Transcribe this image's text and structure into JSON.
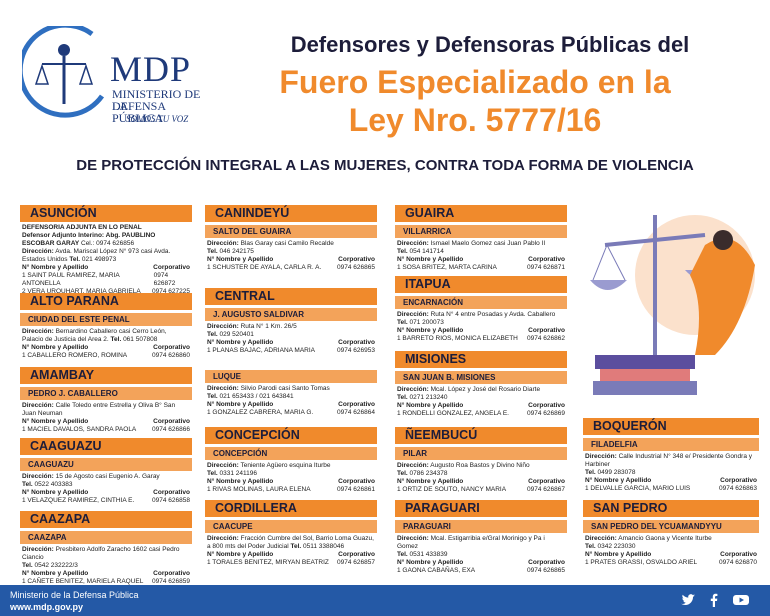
{
  "logo": {
    "abbr": "MDP",
    "line1": "MINISTERIO DE LA",
    "line2": "DEFENSA PÚBLICA",
    "line3": "SOMOS TU VOZ"
  },
  "title": {
    "line1": "Defensores y Defensoras Públicas del",
    "line2": "Fuero Especializado en la",
    "line3": "Ley Nro. 5777/16"
  },
  "subtitle": "DE PROTECCIÓN INTEGRAL A LAS MUJERES,  CONTRA TODA FORMA DE VIOLENCIA",
  "labels": {
    "direccion": "Dirección:",
    "tel": "Tel.",
    "nombre": "N° Nombre y Apellido",
    "corporativo": "Corporativo"
  },
  "cards": {
    "asuncion": {
      "title": "ASUNCIÓN",
      "adj": "DEFENSORIA ADJUNTA EN LO PENAL",
      "adj2": "Defensor Adjunto Interino: Abg. PAUBLINO",
      "adj3": "ESCOBAR GARAY",
      "cel": "Cel.: 0974 626856",
      "dir": "Avda. Mariscal López N° 973 casi Avda.",
      "dir2": "Estados Unidos",
      "tel": "021 498973",
      "p1": "1  SAINT PAUL RAMIREZ, MARIA ANTONELLA",
      "c1": "0974 626872",
      "p2": "2  VERA URQUHART, MARIA GABRIELA",
      "c2": "0974 627225"
    },
    "altoparana": {
      "title": "ALTO PARANA",
      "sub": "CIUDAD DEL ESTE PENAL",
      "dir": "Bernardino Caballero casi Cerro León,",
      "dir2": "Palacio de Justicia del  Area 2.",
      "tel": "061 507808",
      "p1": "1  CABALLERO ROMERO, ROMINA",
      "c1": "0974 626860"
    },
    "amambay": {
      "title": "AMAMBAY",
      "sub": "PEDRO J. CABALLERO",
      "dir": "Calle Toledo entre Estrella y Oliva B° San",
      "dir2": "Juan Neuman",
      "p1": "1  MACIEL DAVALOS, SANDRA PAOLA",
      "c1": "0974 626866"
    },
    "caaguazu": {
      "title": "CAAGUAZU",
      "sub": "CAAGUAZU",
      "dir": "15 de Agosto casi Eugenio A. Garay",
      "tel": "0522 403383",
      "p1": "1  VELAZQUEZ RAMIREZ, CINTHIA E.",
      "c1": "0974 626858"
    },
    "caazapa": {
      "title": "CAAZAPA",
      "sub": "CAAZAPA",
      "dir": "Presbitero Adolfo Zaracho 1602 casi Pedro",
      "dir2": "Ciancio",
      "tel": "0542 232222/3",
      "p1": "1  CAÑETE BENITEZ, MARIELA RAQUEL",
      "c1": "0974 626859"
    },
    "canindeyu": {
      "title": "CANINDEYÚ",
      "sub": "SALTO DEL GUAIRA",
      "dir": "Blas Garay casi Camilo Recalde",
      "tel": "046 242175",
      "p1": "1  SCHUSTER  DE AYALA, CARLA R. A.",
      "c1": "0974 626865"
    },
    "central": {
      "title": "CENTRAL",
      "sub": "J. AUGUSTO SALDIVAR",
      "dir": "Ruta N° 1 Km. 26/5",
      "tel": "029 520401",
      "p1": "1  PLANAS  BAJAC, ADRIANA MARIA",
      "c1": "0974 626953"
    },
    "luque": {
      "sub": "LUQUE",
      "dir": "Silvio Parodi casi Santo Tomas",
      "tel": "021 653433 / 021 643841",
      "p1": "1  GONZALEZ CABRERA, MARIA G.",
      "c1": "0974 626864"
    },
    "concepcion": {
      "title": "CONCEPCIÓN",
      "sub": "CONCEPCIÓN",
      "dir": "Teniente Agüero esquina Iturbe",
      "tel": "0331 241196",
      "p1": "1  RIVAS MOLINAS, LAURA ELENA",
      "c1": "0974 626861"
    },
    "cordillera": {
      "title": "CORDILLERA",
      "sub": "CAACUPE",
      "dir": "Fracción Cumbre del Sol, Barrio Loma Guazu,",
      "dir2": "a 800 mts del Poder Judicial",
      "tel": "0511 3388046",
      "p1": "1  TORALES BENITEZ, MIRYAN BEATRIZ",
      "c1": "0974 626857"
    },
    "guaira": {
      "title": "GUAIRA",
      "sub": "VILLARRICA",
      "dir": "Ismael Maelo Gomez casi Juan Pablo II",
      "tel": "054 141714",
      "p1": "1  SOSA BRITEZ, MARTA CARINA",
      "c1": "0974 626871"
    },
    "itapua": {
      "title": "ITAPUA",
      "sub": "ENCARNACIÓN",
      "dir": "Ruta N° 4 entre Posadas y Avda. Caballero",
      "tel": "071 200073",
      "p1": "1  BARRETO RIOS, MONICA ELIZABETH",
      "c1": "0974 626862"
    },
    "misiones": {
      "title": "MISIONES",
      "sub": "SAN JUAN B. MISIONES",
      "dir": "Mcal. López y José del Rosario Diarte",
      "tel": "0271 213240",
      "p1": "1  RONDELLI GONZALEZ, ANGELA E.",
      "c1": "0974 626869"
    },
    "neembucu": {
      "title": "ÑEEMBUCÚ",
      "sub": "PILAR",
      "dir": "Augusto Roa Bastos y Divino Niño",
      "tel": "0786 234378",
      "p1": "1  ORTIZ  DE SOUTO, NANCY MARIA",
      "c1": "0974 626867"
    },
    "paraguari": {
      "title": "PARAGUARI",
      "sub": "PARAGUARI",
      "dir": "Mcal. Estigarribia e/Gral Morinigo y Pa i Gomez",
      "tel": "0531 433839",
      "p1": "1  GAONA CABAÑAS, EXA",
      "c1": "0974 626865"
    },
    "boqueron": {
      "title": "BOQUERÓN",
      "sub": "FILADELFIA",
      "dir": "Calle Industrial N° 348 e/ Presidente Gondra y",
      "dir2": "Harbiner",
      "tel": "0499 283078",
      "p1": "1  DELVALLE GARCIA, MARIO LUIS",
      "c1": "0974 626863"
    },
    "sanpedro": {
      "title": "SAN PEDRO",
      "sub": "SAN PEDRO DEL YCUAMANDYYU",
      "dir": "Amancio Gaona y Vicente Iturbe",
      "tel": "0342 223030",
      "p1": "1  PRATES GRASSI, OSVALDO ARIEL",
      "c1": "0974 626870"
    }
  },
  "footer": {
    "line1": "Ministerio de la Defensa Pública",
    "line2": "www.mdp.gov.py"
  },
  "social": {
    "twitter": "twitter-icon",
    "facebook": "facebook-icon",
    "youtube": "youtube-icon"
  },
  "colors": {
    "orange": "#f08a2c",
    "navy": "#1d1d3a",
    "blue": "#2459a6"
  }
}
